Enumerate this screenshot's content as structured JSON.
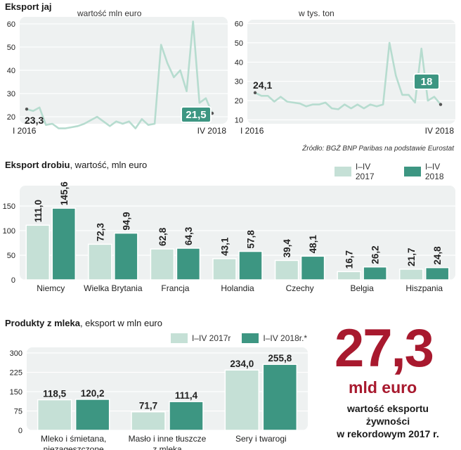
{
  "colors": {
    "light": "#c5e0d6",
    "dark": "#3d9682",
    "line": "#b6dccf",
    "panel": "#eef1f1",
    "accent": "#a8192e",
    "label_box": "#3d9682"
  },
  "egg_section": {
    "title": "Eksport jaj"
  },
  "chart_data": [
    {
      "type": "line",
      "title": "wartość mln euro",
      "y_ticks": [
        20,
        30,
        40,
        50,
        60
      ],
      "ylim": [
        17,
        63
      ],
      "x_start_label": "I 2016",
      "x_end_label": "IV 2018",
      "start_value_label": "23,3",
      "end_value_label": "21,5",
      "series": [
        {
          "values": [
            23.3,
            22.5,
            24,
            16.5,
            17,
            15,
            15,
            15.5,
            16,
            17,
            18.5,
            20,
            18,
            16,
            18,
            17,
            18,
            15,
            19,
            16.5,
            17,
            51,
            43,
            37,
            40,
            31,
            61,
            26,
            28,
            21.5
          ]
        }
      ]
    },
    {
      "type": "line",
      "title": "w tys. ton",
      "y_ticks": [
        10,
        20,
        30,
        40,
        50,
        60
      ],
      "ylim": [
        8,
        62
      ],
      "x_start_label": "I 2016",
      "x_end_label": "IV 2018",
      "start_value_label": "24,1",
      "end_value_label": "18",
      "series": [
        {
          "values": [
            24.1,
            22.5,
            22.5,
            19.5,
            22,
            19.5,
            19,
            18.5,
            17,
            18,
            18,
            19,
            16,
            15.5,
            18,
            16,
            18,
            16,
            18,
            17,
            18,
            50,
            33,
            23,
            23,
            19,
            47,
            20,
            22,
            18
          ]
        }
      ]
    },
    {
      "type": "bar",
      "title": "Eksport drobiu",
      "subtitle": ", wartość, mln euro",
      "categories": [
        "Niemcy",
        "Wielka Brytania",
        "Francja",
        "Holandia",
        "Czechy",
        "Belgia",
        "Hiszpania"
      ],
      "y_ticks": [
        0,
        50,
        100,
        150
      ],
      "ylim": [
        0,
        160
      ],
      "series": [
        {
          "name": "I–IV 2017",
          "values": [
            111.0,
            72.3,
            62.8,
            43.1,
            39.4,
            16.7,
            21.7
          ],
          "labels": [
            "111,0",
            "72,3",
            "62,8",
            "43,1",
            "39,4",
            "16,7",
            "21,7"
          ]
        },
        {
          "name": "I–IV 2018",
          "values": [
            145.6,
            94.9,
            64.3,
            57.8,
            48.1,
            26.2,
            24.8
          ],
          "labels": [
            "145,6",
            "94,9",
            "64,3",
            "57,8",
            "48,1",
            "26,2",
            "24,8"
          ]
        }
      ]
    },
    {
      "type": "bar",
      "title": "Produkty z mleka",
      "subtitle": ", eksport w mln euro",
      "categories": [
        "Mleko i śmietana,|niezagęszczone",
        "Masło i inne tłuszcze|z mleka",
        "Sery i twarogi"
      ],
      "y_ticks": [
        0,
        75,
        150,
        225,
        300
      ],
      "ylim": [
        0,
        300
      ],
      "series": [
        {
          "name": "I–IV 2017r",
          "values": [
            118.5,
            71.7,
            234.0
          ],
          "labels": [
            "118,5",
            "71,7",
            "234,0"
          ]
        },
        {
          "name": "I–IV 2018r.*",
          "values": [
            120.2,
            111.4,
            255.8
          ],
          "labels": [
            "120,2",
            "111,4",
            "255,8"
          ]
        }
      ]
    }
  ],
  "source_note": "Źródło: BGŻ BNP Paribas na podstawie Eurostat",
  "highlight": {
    "number": "27,3",
    "unit": "mld euro",
    "desc_line1": "wartość eksportu",
    "desc_line2": "żywności",
    "desc_line3": "w rekordowym 2017 r."
  }
}
